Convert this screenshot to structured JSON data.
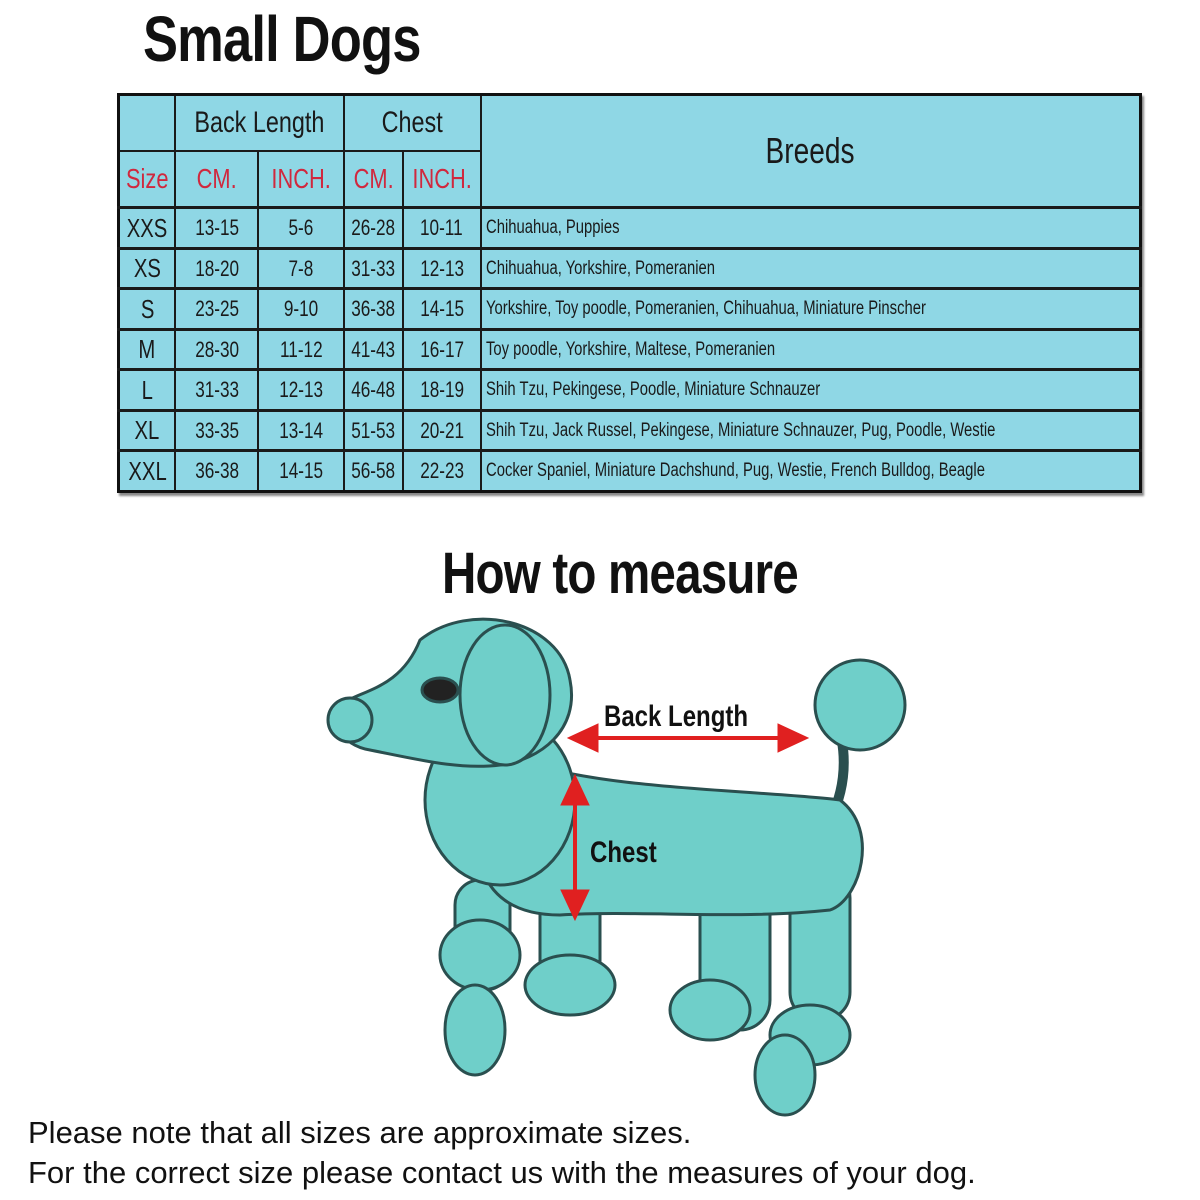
{
  "title": "Small Dogs",
  "table": {
    "group_headers": {
      "back_length": "Back Length",
      "chest": "Chest",
      "breeds": "Breeds"
    },
    "sub_headers": {
      "size": "Size",
      "back_cm": "CM.",
      "back_inch": "INCH.",
      "chest_cm": "CM.",
      "chest_inch": "INCH."
    },
    "rows": [
      {
        "size": "XXS",
        "back_cm": "13-15",
        "back_inch": "5-6",
        "chest_cm": "26-28",
        "chest_inch": "10-11",
        "breeds": "Chihuahua, Puppies"
      },
      {
        "size": "XS",
        "back_cm": "18-20",
        "back_inch": "7-8",
        "chest_cm": "31-33",
        "chest_inch": "12-13",
        "breeds": "Chihuahua, Yorkshire, Pomeranien"
      },
      {
        "size": "S",
        "back_cm": "23-25",
        "back_inch": "9-10",
        "chest_cm": "36-38",
        "chest_inch": "14-15",
        "breeds": "Yorkshire, Toy poodle, Pomeranien, Chihuahua, Miniature Pinscher"
      },
      {
        "size": "M",
        "back_cm": "28-30",
        "back_inch": "11-12",
        "chest_cm": "41-43",
        "chest_inch": "16-17",
        "breeds": "Toy poodle, Yorkshire, Maltese, Pomeranien"
      },
      {
        "size": "L",
        "back_cm": "31-33",
        "back_inch": "12-13",
        "chest_cm": "46-48",
        "chest_inch": "18-19",
        "breeds": "Shih Tzu, Pekingese, Poodle, Miniature Schnauzer"
      },
      {
        "size": "XL",
        "back_cm": "33-35",
        "back_inch": "13-14",
        "chest_cm": "51-53",
        "chest_inch": "20-21",
        "breeds": "Shih Tzu, Jack Russel, Pekingese, Miniature Schnauzer, Pug, Poodle, Westie"
      },
      {
        "size": "XXL",
        "back_cm": "36-38",
        "back_inch": "14-15",
        "chest_cm": "56-58",
        "chest_inch": "22-23",
        "breeds": "Cocker Spaniel, Miniature Dachshund, Pug, Westie, French Bulldog, Beagle"
      }
    ]
  },
  "measure": {
    "title": "How to measure",
    "back_length_label": "Back Length",
    "chest_label": "Chest"
  },
  "notes": [
    "Please note that all sizes are approximate sizes.",
    "For the correct size please contact us with the measures of your dog."
  ],
  "colors": {
    "table_bg": "#8fd7e5",
    "header_red": "#d0283e",
    "dog": "#6fcfc9",
    "arrow": "#e02020"
  }
}
